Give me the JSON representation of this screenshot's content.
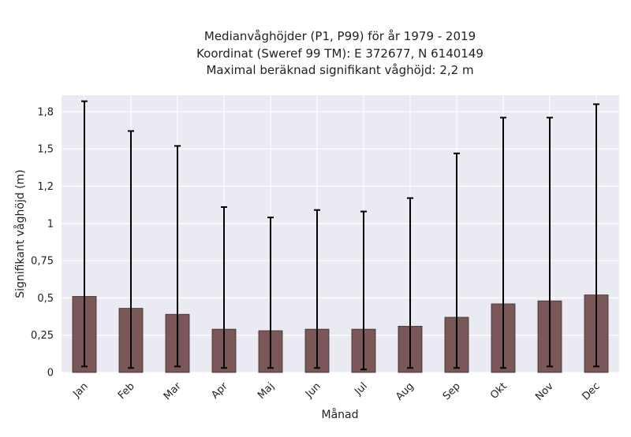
{
  "chart_data": {
    "type": "bar",
    "title_lines": [
      "Medianvåghöjder (P1, P99) för år 1979 - 2019",
      "Koordinat (Sweref 99 TM): E 372677, N 6140149",
      "Maximal beräknad signifikant våghöjd: 2,2 m"
    ],
    "xlabel": "Månad",
    "ylabel": "Signifikant våghöjd (m)",
    "categories": [
      "Jan",
      "Feb",
      "Mar",
      "Apr",
      "Maj",
      "Jun",
      "Jul",
      "Aug",
      "Sep",
      "Okt",
      "Nov",
      "Dec"
    ],
    "values": [
      0.51,
      0.43,
      0.39,
      0.29,
      0.28,
      0.29,
      0.29,
      0.31,
      0.37,
      0.46,
      0.48,
      0.52
    ],
    "p1": [
      0.04,
      0.03,
      0.04,
      0.03,
      0.03,
      0.03,
      0.02,
      0.03,
      0.03,
      0.03,
      0.04,
      0.04
    ],
    "p99": [
      1.82,
      1.62,
      1.52,
      1.11,
      1.04,
      1.09,
      1.08,
      1.17,
      1.47,
      1.71,
      1.71,
      1.8
    ],
    "yticks": [
      0,
      0.25,
      0.5,
      0.75,
      1,
      1.25,
      1.5,
      1.75
    ],
    "ytick_labels": [
      "0",
      "0,25",
      "0,5",
      "0,75",
      "1",
      "1,2",
      "1,5",
      "1,8"
    ],
    "ylim": [
      0,
      1.86
    ],
    "grid": true,
    "colors": {
      "bar": "#7b5858",
      "bar_edge": "#3a2a2a",
      "error": "#000000",
      "plot_bg": "#eaeaf2",
      "grid": "#ffffff"
    }
  }
}
